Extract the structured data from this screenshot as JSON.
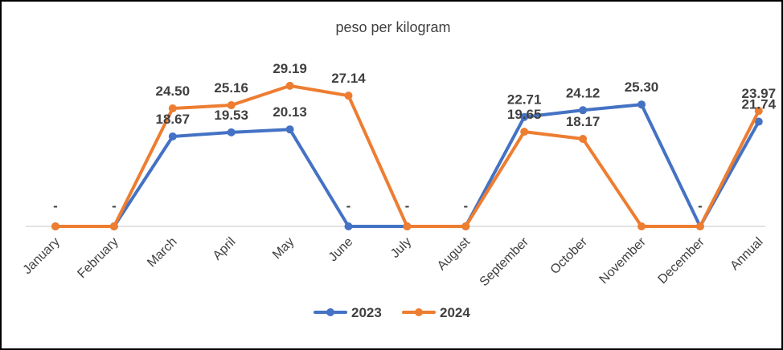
{
  "chart_data": {
    "type": "line",
    "title": "peso per kilogram",
    "categories": [
      "January",
      "February",
      "March",
      "April",
      "May",
      "June",
      "July",
      "August",
      "September",
      "October",
      "November",
      "December",
      "Annual"
    ],
    "series": [
      {
        "name": "2023",
        "color": "#4472C4",
        "values": [
          0,
          0,
          18.67,
          19.53,
          20.13,
          0,
          0,
          0,
          22.71,
          24.12,
          25.3,
          0,
          21.74
        ],
        "labels": [
          "",
          "",
          "18.67",
          "19.53",
          "20.13",
          "-",
          "-",
          "-",
          "22.71",
          "24.12",
          "25.30",
          "-",
          "21.74"
        ]
      },
      {
        "name": "2024",
        "color": "#ED7D31",
        "values": [
          0,
          0,
          24.5,
          25.16,
          29.19,
          27.14,
          0,
          0,
          19.65,
          18.17,
          0,
          0,
          23.97
        ],
        "labels": [
          "-",
          "-",
          "24.50",
          "25.16",
          "29.19",
          "27.14",
          "",
          "",
          "19.65",
          "18.17",
          "",
          "",
          "23.97"
        ]
      }
    ],
    "legend_position": "bottom",
    "grid": false
  }
}
